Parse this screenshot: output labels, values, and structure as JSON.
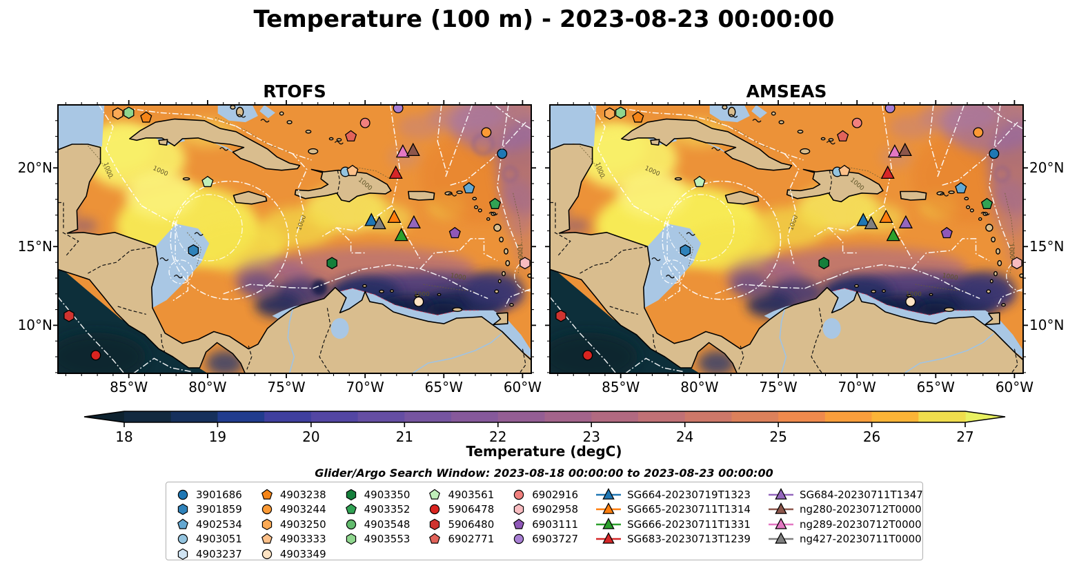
{
  "title": "Temperature (100 m) - 2023-08-23 00:00:00",
  "panel_titles": [
    "RTOFS",
    "AMSEAS"
  ],
  "subtitle": "Glider/Argo Search Window: 2023-08-18 00:00:00 to 2023-08-23 00:00:00",
  "colorbar_label": "Temperature (degC)",
  "legend": {
    "columns": [
      [
        {
          "label": "3901686",
          "marker": "circle",
          "color": "#1f77b4"
        },
        {
          "label": "3901859",
          "marker": "hexagon",
          "color": "#2f82ba"
        },
        {
          "label": "4902534",
          "marker": "pentagon",
          "color": "#64a8d2"
        },
        {
          "label": "4903051",
          "marker": "circle",
          "color": "#94c4df"
        },
        {
          "label": "4903237",
          "marker": "hexagon",
          "color": "#cfe3f2"
        }
      ],
      [
        {
          "label": "4903238",
          "marker": "pentagon",
          "color": "#f58518"
        },
        {
          "label": "4903244",
          "marker": "circle",
          "color": "#fb9a35"
        },
        {
          "label": "4903250",
          "marker": "hexagon",
          "color": "#fbaa55"
        },
        {
          "label": "4903333",
          "marker": "pentagon",
          "color": "#fcc089"
        },
        {
          "label": "4903349",
          "marker": "circle",
          "color": "#fde3c3"
        }
      ],
      [
        {
          "label": "4903350",
          "marker": "hexagon",
          "color": "#157f3b"
        },
        {
          "label": "4903352",
          "marker": "pentagon",
          "color": "#31a354"
        },
        {
          "label": "4903548",
          "marker": "circle",
          "color": "#62bb6d"
        },
        {
          "label": "4903553",
          "marker": "hexagon",
          "color": "#8fd68e"
        }
      ],
      [
        {
          "label": "4903561",
          "marker": "pentagon",
          "color": "#c0efba"
        },
        {
          "label": "5906478",
          "marker": "circle",
          "color": "#da2420"
        },
        {
          "label": "5906480",
          "marker": "hexagon",
          "color": "#cf3430"
        },
        {
          "label": "6902771",
          "marker": "pentagon",
          "color": "#e2635a"
        }
      ],
      [
        {
          "label": "6902916",
          "marker": "circle",
          "color": "#f1807e"
        },
        {
          "label": "6902958",
          "marker": "hexagon",
          "color": "#f8bcc0"
        },
        {
          "label": "6903111",
          "marker": "pentagon",
          "color": "#8f58b8"
        },
        {
          "label": "6903727",
          "marker": "circle",
          "color": "#a87fd4"
        }
      ],
      [
        {
          "label": "SG664-20230719T1323",
          "marker": "glider",
          "color": "#1f77b4"
        },
        {
          "label": "SG665-20230711T1314",
          "marker": "glider",
          "color": "#ff7f0e"
        },
        {
          "label": "SG666-20230711T1331",
          "marker": "glider",
          "color": "#2ca02c"
        },
        {
          "label": "SG683-20230713T1239",
          "marker": "glider",
          "color": "#d62728"
        }
      ],
      [
        {
          "label": "SG684-20230711T1347",
          "marker": "glider",
          "color": "#9467bd"
        },
        {
          "label": "ng280-20230712T0000",
          "marker": "glider",
          "color": "#8c564b"
        },
        {
          "label": "ng289-20230712T0000",
          "marker": "glider",
          "color": "#e377c2"
        },
        {
          "label": "ng427-20230711T0000",
          "marker": "glider",
          "color": "#7f7f7f"
        }
      ]
    ]
  },
  "chart_data": {
    "type": "heatmap",
    "title": "Temperature (100 m) - 2023-08-23 00:00:00",
    "panels": [
      "RTOFS",
      "AMSEAS"
    ],
    "variable": "Temperature (degC)",
    "depth": "100 m",
    "valid_time": "2023-08-23 00:00:00",
    "search_window": "2023-08-18 00:00:00 to 2023-08-23 00:00:00",
    "lon_range": [
      -89.5,
      -59.45
    ],
    "lat_range": [
      6.95,
      24.0
    ],
    "lon_ticks": [
      {
        "label": "85°W",
        "lon": -85
      },
      {
        "label": "80°W",
        "lon": -80
      },
      {
        "label": "75°W",
        "lon": -75
      },
      {
        "label": "70°W",
        "lon": -70
      },
      {
        "label": "65°W",
        "lon": -65
      },
      {
        "label": "60°W",
        "lon": -60
      }
    ],
    "lat_ticks": [
      {
        "label": "10°N",
        "lat": 10
      },
      {
        "label": "15°N",
        "lat": 15
      },
      {
        "label": "20°N",
        "lat": 20
      }
    ],
    "colorbar": {
      "label": "Temperature (degC)",
      "min": 18,
      "max": 27,
      "ticks": [
        18,
        19,
        20,
        21,
        22,
        23,
        24,
        25,
        26,
        27
      ],
      "segment_colors": [
        "#12293f",
        "#16305c",
        "#213c8e",
        "#3f3f9e",
        "#5346a3",
        "#654ea3",
        "#7655a0",
        "#86599b",
        "#945e94",
        "#a3648b",
        "#b16a81",
        "#c07176",
        "#cd7869",
        "#dc815b",
        "#ef8a4d",
        "#f99e3c",
        "#fbb437",
        "#f0dd4d"
      ],
      "under_color": "#0e222f",
      "over_color": "#e9f161"
    },
    "observations": [
      {
        "id": "4903250",
        "marker": "hexagon",
        "color": "#fbaa55",
        "lon": -85.7,
        "lat": 23.45
      },
      {
        "id": "4903553",
        "marker": "hexagon",
        "color": "#8fd68e",
        "lon": -85.0,
        "lat": 23.5
      },
      {
        "id": "4903238",
        "marker": "pentagon",
        "color": "#f58518",
        "lon": -83.9,
        "lat": 23.2
      },
      {
        "id": "6903727",
        "marker": "circle",
        "color": "#a87fd4",
        "lon": -67.9,
        "lat": 23.8
      },
      {
        "id": "6902916",
        "marker": "circle",
        "color": "#f1807e",
        "lon": -70.0,
        "lat": 22.85
      },
      {
        "id": "6902771",
        "marker": "pentagon",
        "color": "#e2635a",
        "lon": -70.9,
        "lat": 22.0
      },
      {
        "id": "4903244",
        "marker": "circle",
        "color": "#fb9a35",
        "lon": -62.3,
        "lat": 22.25
      },
      {
        "id": "3901686",
        "marker": "circle",
        "color": "#1f77b4",
        "lon": -61.3,
        "lat": 20.9
      },
      {
        "id": "ng289-20230712T0000",
        "marker": "triangle",
        "color": "#e377c2",
        "lon": -67.6,
        "lat": 21.0
      },
      {
        "id": "ng280-20230712T0000",
        "marker": "triangle",
        "color": "#8c564b",
        "lon": -66.95,
        "lat": 21.1
      },
      {
        "id": "SG683-20230713T1239",
        "marker": "triangle",
        "color": "#d62728",
        "lon": -68.05,
        "lat": 19.65
      },
      {
        "id": "4903051",
        "marker": "circle",
        "color": "#94c4df",
        "lon": -71.25,
        "lat": 19.75
      },
      {
        "id": "4903333",
        "marker": "pentagon",
        "color": "#fcc089",
        "lon": -70.8,
        "lat": 19.8
      },
      {
        "id": "4903561",
        "marker": "pentagon",
        "color": "#c0efba",
        "lon": -80.0,
        "lat": 19.1
      },
      {
        "id": "4902534",
        "marker": "pentagon",
        "color": "#64a8d2",
        "lon": -63.4,
        "lat": 18.7
      },
      {
        "id": "4903352",
        "marker": "pentagon",
        "color": "#31a354",
        "lon": -61.75,
        "lat": 17.7
      },
      {
        "id": "SG664-20230719T1323",
        "marker": "triangle",
        "color": "#1f77b4",
        "lon": -69.6,
        "lat": 16.65
      },
      {
        "id": "ng427-20230711T0000",
        "marker": "triangle",
        "color": "#7f7f7f",
        "lon": -69.1,
        "lat": 16.45
      },
      {
        "id": "SG665-20230711T1314",
        "marker": "triangle",
        "color": "#ff7f0e",
        "lon": -68.15,
        "lat": 16.85
      },
      {
        "id": "SG684-20230711T1347",
        "marker": "triangle",
        "color": "#9467bd",
        "lon": -66.9,
        "lat": 16.5
      },
      {
        "id": "SG666-20230711T1331",
        "marker": "triangle",
        "color": "#2ca02c",
        "lon": -67.7,
        "lat": 15.7
      },
      {
        "id": "6903111",
        "marker": "pentagon",
        "color": "#8f58b8",
        "lon": -64.3,
        "lat": 15.85
      },
      {
        "id": "6902958",
        "marker": "hexagon",
        "color": "#f8bcc0",
        "lon": -59.85,
        "lat": 13.95
      },
      {
        "id": "4903350",
        "marker": "hexagon",
        "color": "#157f3b",
        "lon": -72.1,
        "lat": 13.95
      },
      {
        "id": "3901859",
        "marker": "hexagon",
        "color": "#2f82ba",
        "lon": -80.9,
        "lat": 14.75
      },
      {
        "id": "5906480",
        "marker": "hexagon",
        "color": "#cf3430",
        "lon": -88.8,
        "lat": 10.6
      },
      {
        "id": "5906478",
        "marker": "circle",
        "color": "#da2420",
        "lon": -87.1,
        "lat": 8.1
      },
      {
        "id": "4903349",
        "marker": "circle",
        "color": "#fde3c3",
        "lon": -66.6,
        "lat": 11.5
      }
    ]
  }
}
